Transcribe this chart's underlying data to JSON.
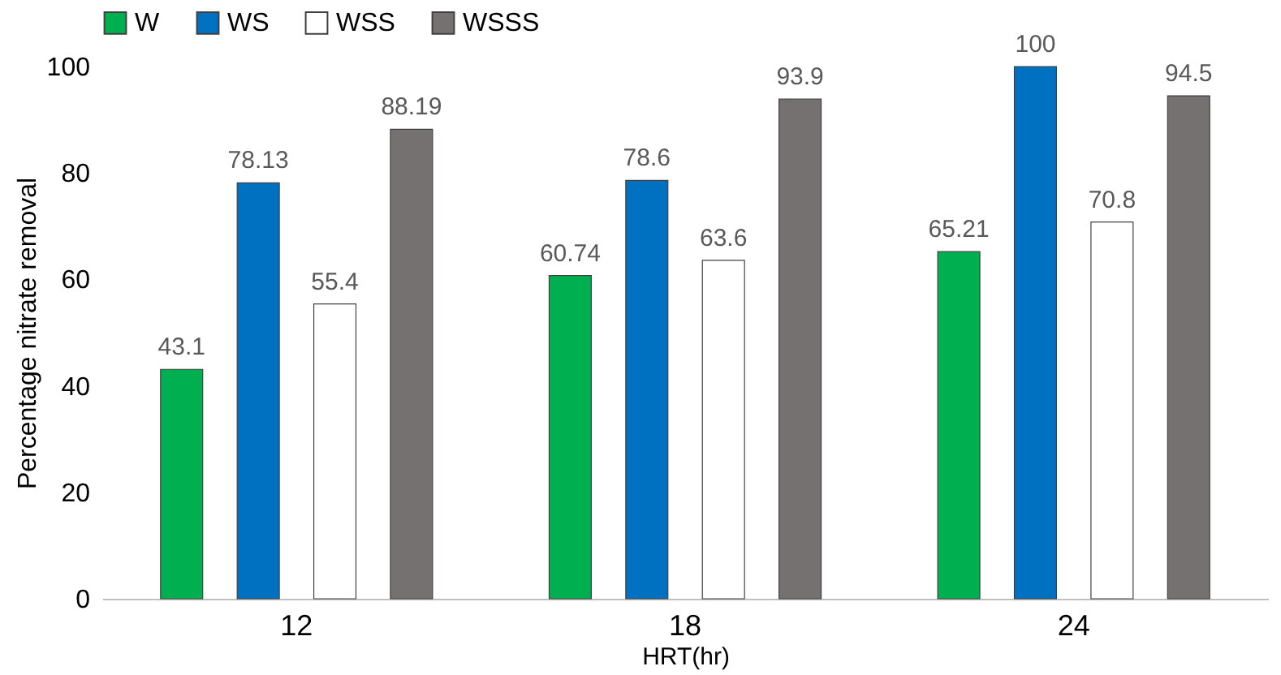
{
  "chart_data": {
    "type": "bar",
    "xlabel": "HRT(hr)",
    "ylabel": "Percentage nitrate removal",
    "categories": [
      "12",
      "18",
      "24"
    ],
    "series": [
      {
        "name": "W",
        "color": "#00b050",
        "values": [
          43.1,
          60.74,
          65.21
        ]
      },
      {
        "name": "WS",
        "color": "#0070c0",
        "values": [
          78.13,
          78.6,
          100
        ]
      },
      {
        "name": "WSS",
        "color": "#ffffff",
        "values": [
          55.4,
          63.6,
          70.8
        ]
      },
      {
        "name": "WSSS",
        "color": "#767171",
        "values": [
          88.19,
          93.9,
          94.5
        ]
      }
    ],
    "ylim": [
      0,
      100
    ],
    "yticks": [
      0,
      20,
      40,
      60,
      80,
      100
    ],
    "grid": false,
    "legend": "top",
    "data_labels": true
  }
}
